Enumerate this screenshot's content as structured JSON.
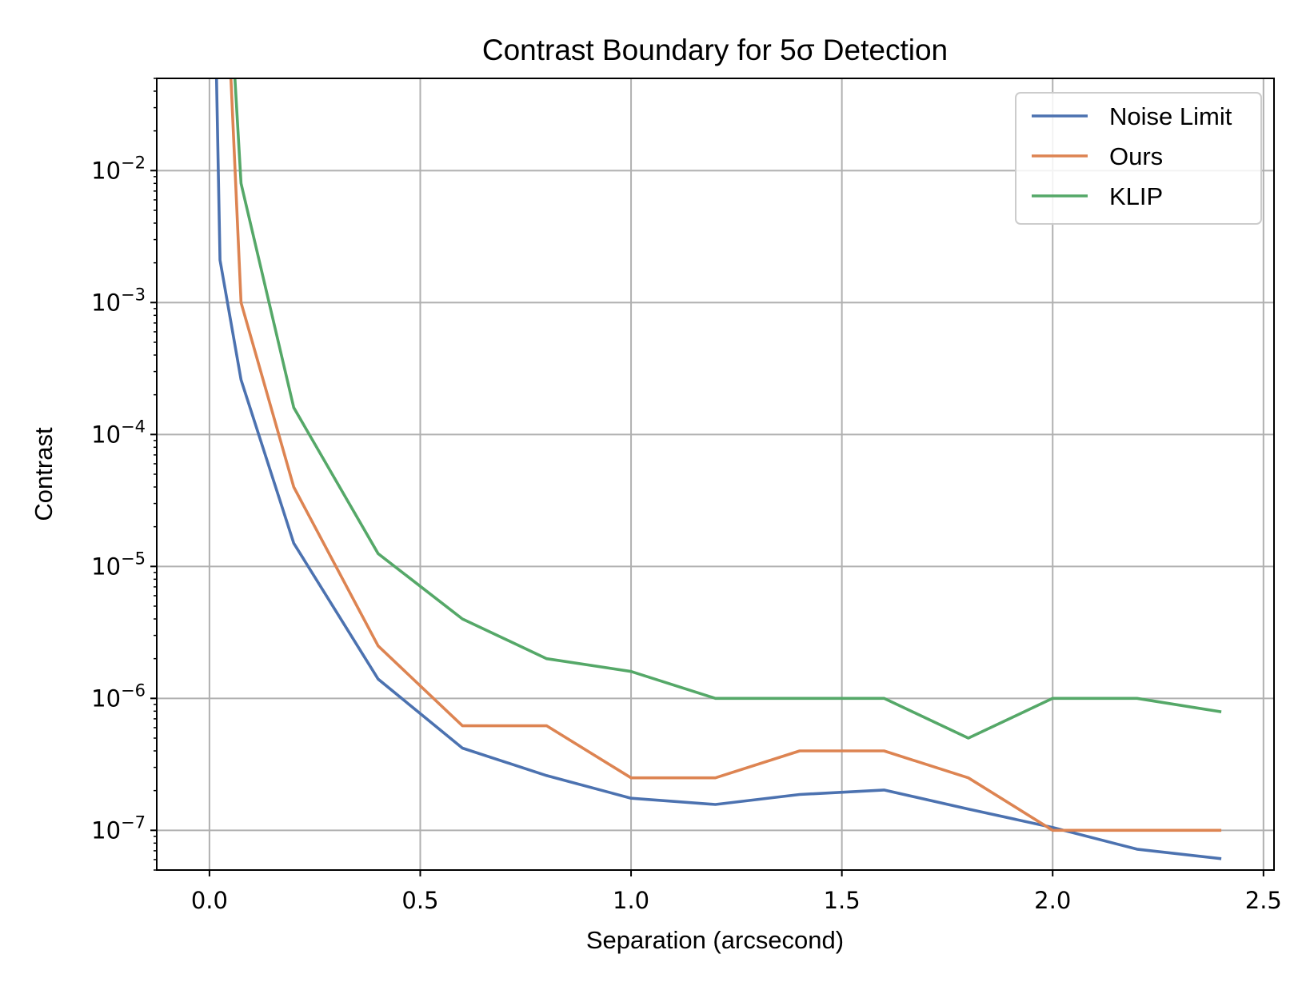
{
  "chart_data": {
    "type": "line",
    "title": "Contrast Boundary for 5σ Detection",
    "xlabel": "Separation (arcsecond)",
    "ylabel": "Contrast",
    "xlim": [
      -0.125,
      2.525
    ],
    "ylim": [
      5e-08,
      0.05
    ],
    "yscale": "log",
    "grid": true,
    "legend_position": "top-right",
    "x_ticks": [
      {
        "value": 0.0,
        "label": "0.0"
      },
      {
        "value": 0.5,
        "label": "0.5"
      },
      {
        "value": 1.0,
        "label": "1.0"
      },
      {
        "value": 1.5,
        "label": "1.5"
      },
      {
        "value": 2.0,
        "label": "2.0"
      },
      {
        "value": 2.5,
        "label": "2.5"
      }
    ],
    "y_ticks": [
      {
        "value": 0.01,
        "base": "10",
        "exp": "−2"
      },
      {
        "value": 0.001,
        "base": "10",
        "exp": "−3"
      },
      {
        "value": 0.0001,
        "base": "10",
        "exp": "−4"
      },
      {
        "value": 1e-05,
        "base": "10",
        "exp": "−5"
      },
      {
        "value": 1e-06,
        "base": "10",
        "exp": "−6"
      },
      {
        "value": 1e-07,
        "base": "10",
        "exp": "−7"
      }
    ],
    "series": [
      {
        "name": "Noise Limit",
        "color": "#4c72b0",
        "x": [
          0.0,
          0.025,
          0.075,
          0.2,
          0.4,
          0.6,
          0.8,
          1.0,
          1.2,
          1.4,
          1.6,
          1.8,
          2.0,
          2.2,
          2.4
        ],
        "y": [
          30,
          0.0021,
          0.00026,
          1.5e-05,
          1.4e-06,
          4.2e-07,
          2.6e-07,
          1.75e-07,
          1.57e-07,
          1.87e-07,
          2.02e-07,
          1.45e-07,
          1.05e-07,
          7.2e-08,
          6.1e-08
        ]
      },
      {
        "name": "Ours",
        "color": "#dd8452",
        "x": [
          0.0,
          0.075,
          0.2,
          0.4,
          0.6,
          0.8,
          1.0,
          1.2,
          1.4,
          1.6,
          1.8,
          2.0,
          2.2,
          2.4
        ],
        "y": [
          200,
          0.001,
          4e-05,
          2.5e-06,
          6.2e-07,
          6.2e-07,
          2.5e-07,
          2.5e-07,
          4e-07,
          4e-07,
          2.5e-07,
          1e-07,
          1e-07,
          1e-07
        ]
      },
      {
        "name": "KLIP",
        "color": "#55a868",
        "x": [
          0.0,
          0.075,
          0.2,
          0.4,
          0.6,
          0.8,
          1.0,
          1.2,
          1.4,
          1.6,
          1.8,
          2.0,
          2.2,
          2.4
        ],
        "y": [
          100,
          0.008,
          0.00016,
          1.25e-05,
          4e-06,
          2e-06,
          1.6e-06,
          1e-06,
          1e-06,
          1e-06,
          5e-07,
          1e-06,
          1e-06,
          7.9e-07
        ]
      }
    ]
  }
}
